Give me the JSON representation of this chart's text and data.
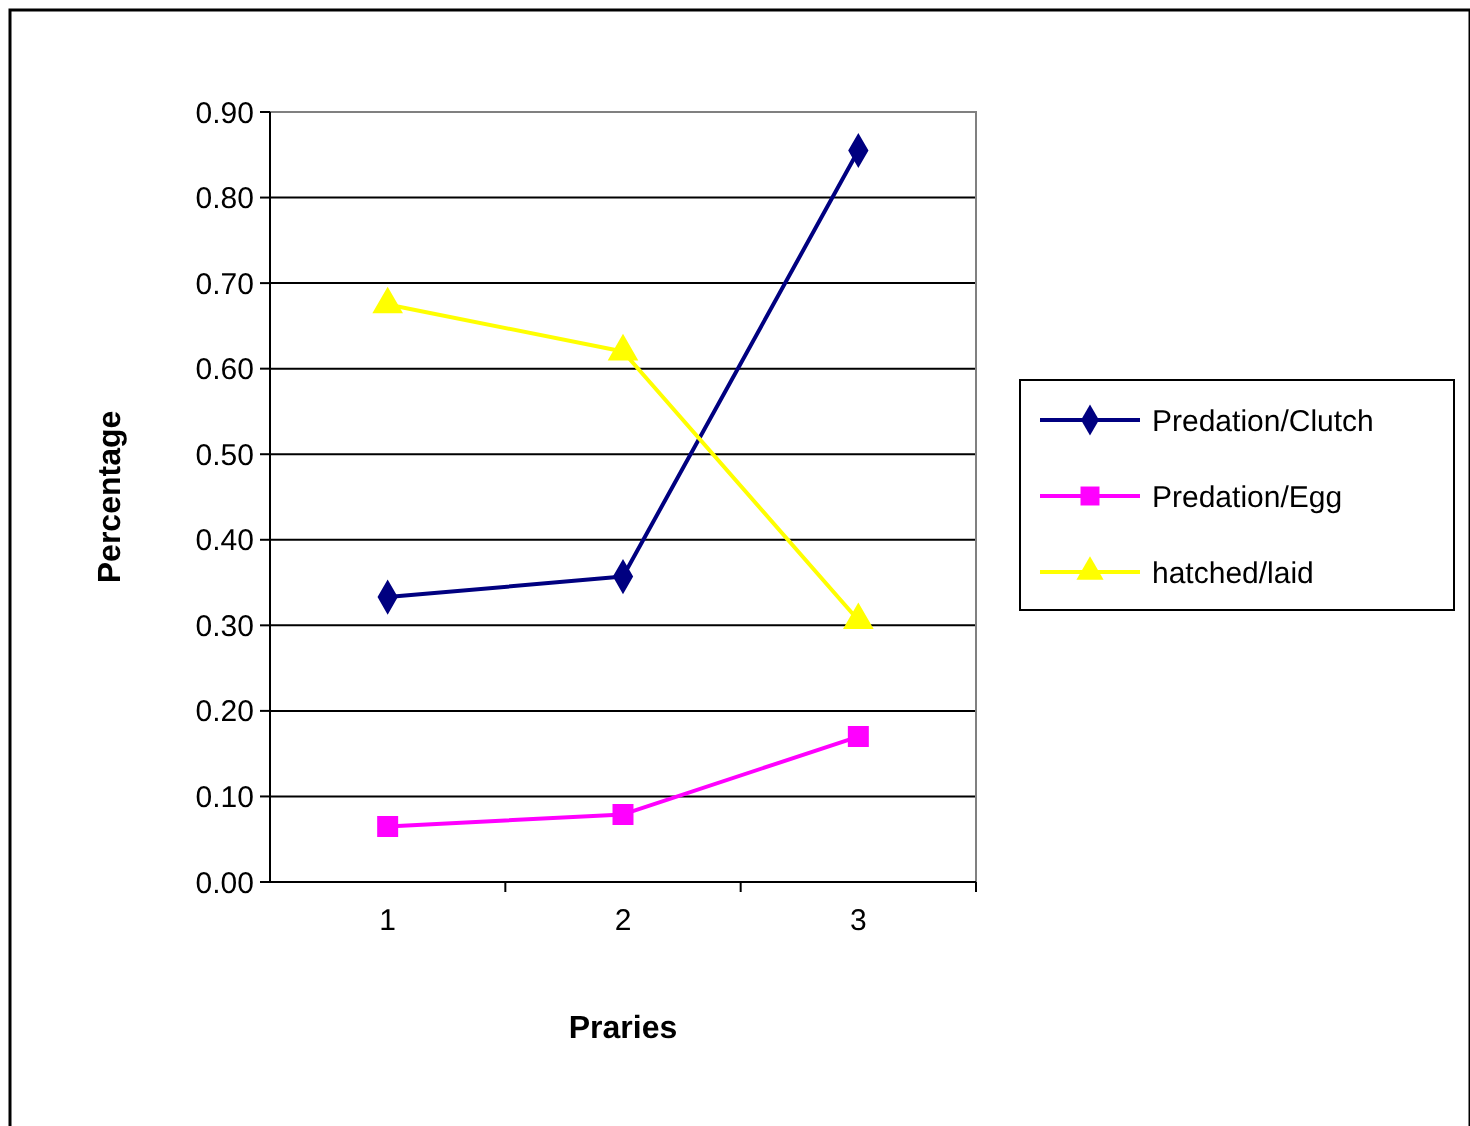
{
  "chart_data": {
    "type": "line",
    "xlabel": "Praries",
    "ylabel": "Percentage",
    "categories": [
      "1",
      "2",
      "3"
    ],
    "ylim": [
      0,
      0.9
    ],
    "yticks": [
      {
        "value": 0,
        "label": "0.00"
      },
      {
        "value": 0.1,
        "label": "0.10"
      },
      {
        "value": 0.2,
        "label": "0.20"
      },
      {
        "value": 0.3,
        "label": "0.30"
      },
      {
        "value": 0.4,
        "label": "0.40"
      },
      {
        "value": 0.5,
        "label": "0.50"
      },
      {
        "value": 0.6,
        "label": "0.60"
      },
      {
        "value": 0.7,
        "label": "0.70"
      },
      {
        "value": 0.8,
        "label": "0.80"
      },
      {
        "value": 0.9,
        "label": "0.90"
      }
    ],
    "grid": "y",
    "legend": "right",
    "line_style": "solid",
    "series": [
      {
        "name": "Predation/Clutch",
        "color": "#000080",
        "marker": "diamond",
        "values": [
          0.333,
          0.357,
          0.855
        ]
      },
      {
        "name": "Predation/Egg",
        "color": "#ff00ff",
        "marker": "square",
        "values": [
          0.065,
          0.079,
          0.17
        ]
      },
      {
        "name": "hatched/laid",
        "color": "#ffff00",
        "marker": "triangle",
        "values": [
          0.675,
          0.62,
          0.306
        ]
      }
    ]
  }
}
